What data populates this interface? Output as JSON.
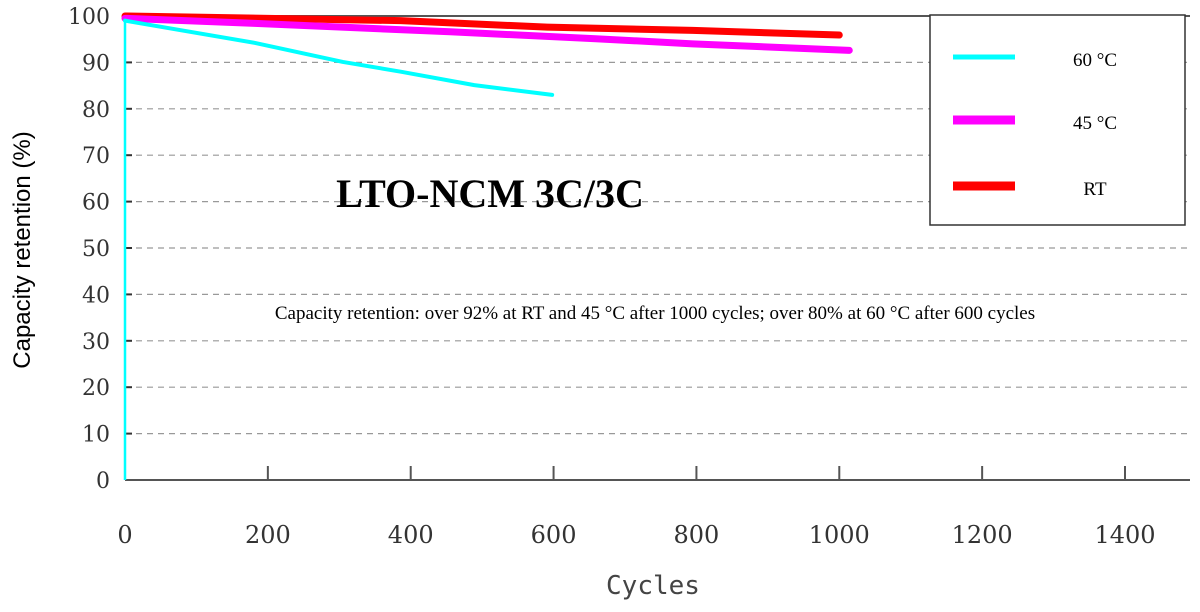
{
  "chart_data": {
    "type": "line",
    "title": "LTO-NCM 3C/3C",
    "annotation": "Capacity retention: over 92% at RT and 45 °C after 1000 cycles; over 80% at 60 °C after 600 cycles",
    "xlabel": "Cycles",
    "ylabel": "Capacity retention (%)",
    "xlim": [
      0,
      1400
    ],
    "ylim": [
      0,
      100
    ],
    "xticks": [
      "0",
      "200",
      "400",
      "600",
      "800",
      "1000",
      "1200",
      "1400"
    ],
    "yticks": [
      "0",
      "10",
      "20",
      "30",
      "40",
      "50",
      "60",
      "70",
      "80",
      "90",
      "100"
    ],
    "grid": "horizontal dashed",
    "legend_position": "top-right",
    "series": [
      {
        "name": "60 °C",
        "color": "#00ffff",
        "x": [
          0,
          182,
          305,
          386,
          489,
          598
        ],
        "y": [
          99,
          94.2,
          90.1,
          88,
          85.1,
          83
        ]
      },
      {
        "name": "45 °C",
        "color": "#ff00ff",
        "x": [
          0,
          182,
          455,
          659,
          795,
          1014
        ],
        "y": [
          99.5,
          98.4,
          96.6,
          95.1,
          94,
          92.6
        ]
      },
      {
        "name": "RT",
        "color": "#ff0000",
        "x": [
          0,
          386,
          591,
          795,
          1000
        ],
        "y": [
          100,
          99,
          97.6,
          96.9,
          95.9
        ]
      }
    ]
  }
}
